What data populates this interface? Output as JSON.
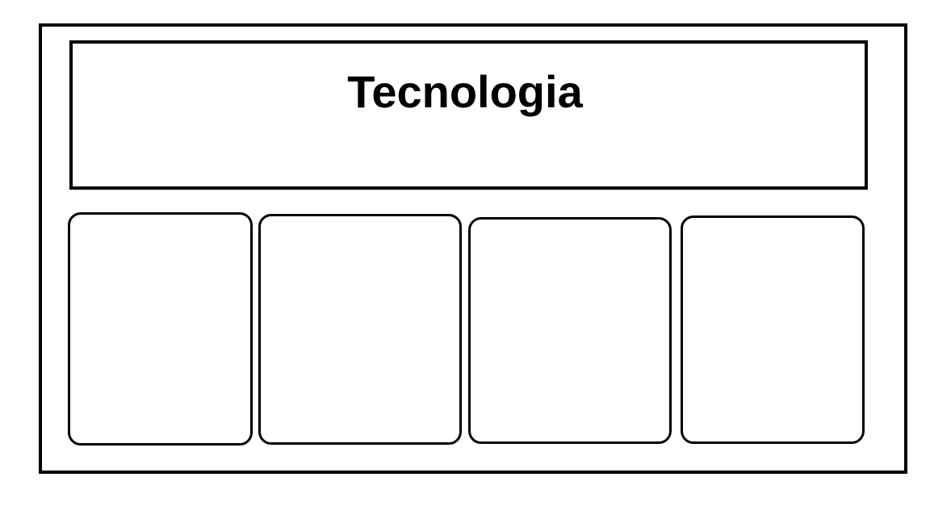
{
  "header": {
    "title": "Tecnologia"
  },
  "cards": [
    {},
    {},
    {},
    {}
  ]
}
